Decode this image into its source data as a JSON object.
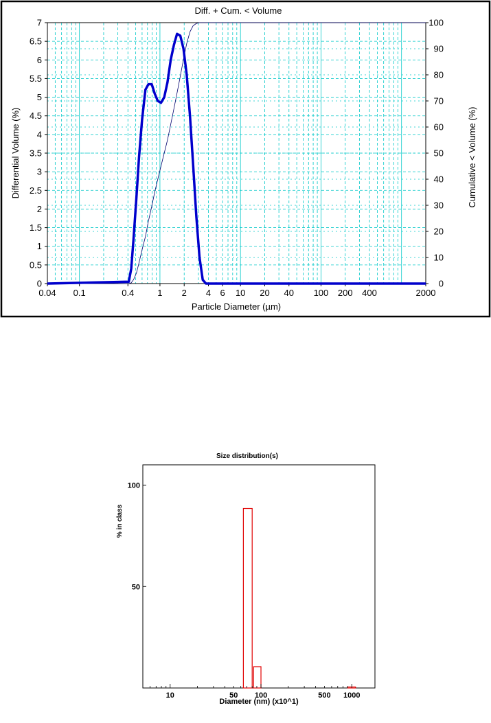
{
  "chart_data": [
    {
      "type": "line",
      "title": "Diff. + Cum. < Volume",
      "xlabel": "Particle Diameter (µm)",
      "ylabel": "Differential Volume (%)",
      "y2label": "Cumulative < Volume (%)",
      "xscale": "log",
      "xlim": [
        0.04,
        2000
      ],
      "ylim": [
        0,
        7
      ],
      "y2lim": [
        0,
        100
      ],
      "grid": true,
      "xticks": [
        "0.04",
        "0.1",
        "0.4",
        "1",
        "2",
        "4",
        "6",
        "10",
        "20",
        "40",
        "100",
        "200",
        "400",
        "2000"
      ],
      "yticks": [
        "0",
        "0.5",
        "1",
        "1.5",
        "2",
        "2.5",
        "3",
        "3.5",
        "4",
        "4.5",
        "5",
        "5.5",
        "6",
        "6.5",
        "7"
      ],
      "y2ticks": [
        "0",
        "10",
        "20",
        "30",
        "40",
        "50",
        "60",
        "70",
        "80",
        "90",
        "100"
      ],
      "colors": {
        "differential": "#0000cc",
        "cumulative": "#00006e",
        "grid": "#00c8c8"
      },
      "series": [
        {
          "axis": "left",
          "x": [
            0.04,
            0.41,
            0.44,
            0.47,
            0.51,
            0.55,
            0.6,
            0.66,
            0.72,
            0.79,
            0.86,
            0.94,
            1.03,
            1.13,
            1.24,
            1.36,
            1.49,
            1.63,
            1.79,
            1.96,
            2.15,
            2.36,
            2.58,
            2.83,
            3.1,
            3.4,
            3.73,
            4.09,
            2000
          ],
          "values": [
            0,
            0.05,
            0.4,
            1.2,
            2.3,
            3.4,
            4.4,
            5.2,
            5.35,
            5.35,
            5.1,
            4.9,
            4.85,
            5.0,
            5.4,
            6.0,
            6.4,
            6.7,
            6.65,
            6.3,
            5.6,
            4.5,
            3.2,
            1.8,
            0.7,
            0.1,
            0,
            0,
            0
          ]
        },
        {
          "axis": "right",
          "x": [
            0.04,
            0.41,
            0.44,
            0.47,
            0.51,
            0.55,
            0.6,
            0.66,
            0.72,
            0.79,
            0.86,
            0.94,
            1.03,
            1.13,
            1.24,
            1.36,
            1.49,
            1.63,
            1.79,
            1.96,
            2.15,
            2.36,
            2.58,
            2.83,
            3.1,
            3.4,
            3.73,
            4.09,
            2000
          ],
          "values": [
            0,
            0,
            0.3,
            1.5,
            4,
            8,
            13,
            18,
            24,
            29.5,
            35,
            40,
            45,
            50,
            55,
            61,
            67,
            73,
            79.5,
            86,
            92,
            96.5,
            98.8,
            99.7,
            100,
            100,
            100,
            100,
            100
          ]
        }
      ]
    },
    {
      "type": "bar",
      "title": "Size distribution(s)",
      "xlabel": "Diameter (nm) (x10^1)",
      "ylabel": "% in class",
      "xscale": "log",
      "xlim": [
        5,
        1800
      ],
      "ylim": [
        0,
        110
      ],
      "xticks": [
        "10",
        "50",
        "100",
        "500",
        "1000"
      ],
      "yticks": [
        "50",
        "100"
      ],
      "colors": {
        "bars": "#e00000"
      },
      "bars": [
        {
          "x0": 64,
          "x1": 80,
          "value": 88.5
        },
        {
          "x0": 83,
          "x1": 100,
          "value": 10.5
        },
        {
          "x0": 900,
          "x1": 1100,
          "value": 0.5
        }
      ]
    }
  ]
}
